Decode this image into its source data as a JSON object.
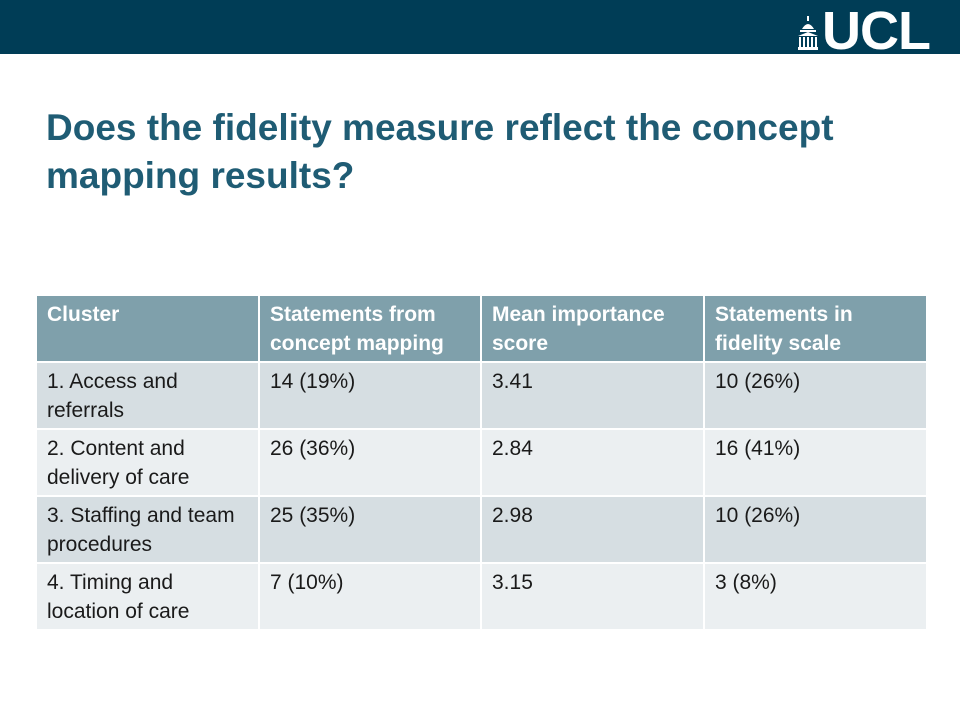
{
  "header": {
    "logo_text": "UCL",
    "bar_color": "#003d56"
  },
  "slide": {
    "title": "Does the fidelity measure reflect the concept mapping results?",
    "title_color": "#1f5c74"
  },
  "table": {
    "columns": [
      "Cluster",
      "Statements from concept mapping",
      "Mean importance score",
      "Statements in fidelity scale"
    ],
    "header_color": "#7fa0ab",
    "rows": [
      [
        "1. Access and referrals",
        "14 (19%)",
        "3.41",
        "10 (26%)"
      ],
      [
        "2. Content and delivery of care",
        "26 (36%)",
        "2.84",
        "16 (41%)"
      ],
      [
        "3. Staffing and team procedures",
        "25 (35%)",
        "2.98",
        "10 (26%)"
      ],
      [
        "4. Timing and location of care",
        "7 (10%)",
        "3.15",
        "3 (8%)"
      ]
    ]
  }
}
